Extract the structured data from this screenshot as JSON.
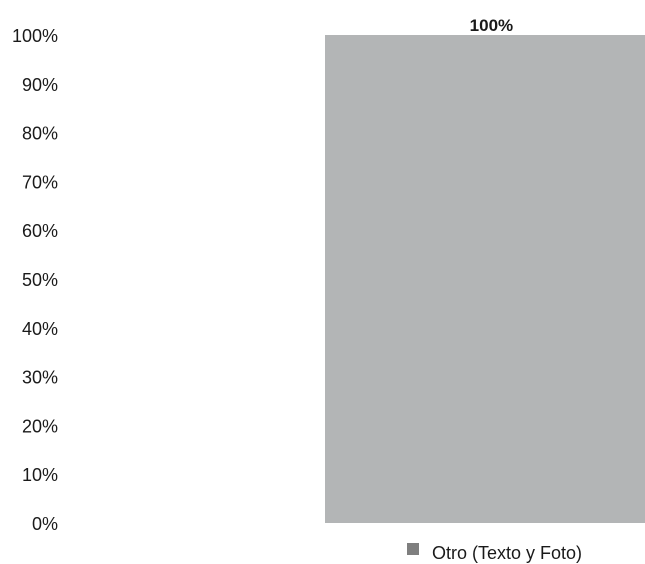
{
  "chart_data": {
    "type": "bar",
    "categories": [
      ""
    ],
    "series": [
      {
        "name": "Otro (Texto y Foto)",
        "values": [
          100
        ],
        "color": "#b3b5b6",
        "data_labels": [
          "100%"
        ]
      }
    ],
    "title": "",
    "xlabel": "",
    "ylabel": "",
    "ylim": [
      0,
      100
    ],
    "y_ticks": [
      0,
      10,
      20,
      30,
      40,
      50,
      60,
      70,
      80,
      90,
      100
    ],
    "y_tick_labels": [
      "0%",
      "10%",
      "20%",
      "30%",
      "40%",
      "50%",
      "60%",
      "70%",
      "80%",
      "90%",
      "100%"
    ],
    "grid": false,
    "legend_position": "bottom"
  },
  "legend": {
    "label": "Otro (Texto y Foto)",
    "swatch_color": "#7f7f7f"
  }
}
